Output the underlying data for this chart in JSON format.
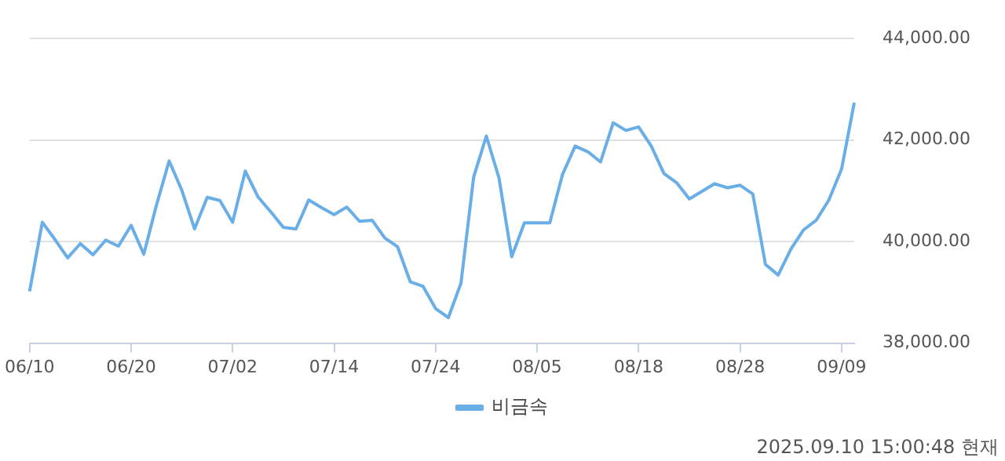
{
  "chart_data": {
    "type": "line",
    "categories": [
      "06/10",
      null,
      null,
      null,
      null,
      null,
      null,
      null,
      "06/20",
      null,
      null,
      null,
      null,
      null,
      null,
      null,
      "07/02",
      null,
      null,
      null,
      null,
      null,
      null,
      null,
      "07/14",
      null,
      null,
      null,
      null,
      null,
      null,
      null,
      "07/24",
      null,
      null,
      null,
      null,
      null,
      null,
      null,
      "08/05",
      null,
      null,
      null,
      null,
      null,
      null,
      null,
      "08/18",
      null,
      null,
      null,
      null,
      null,
      null,
      null,
      "08/28",
      null,
      null,
      null,
      null,
      null,
      null,
      null,
      "09/09",
      null
    ],
    "series": [
      {
        "name": "비금속",
        "color": "#6aaee8",
        "values": [
          39020,
          40380,
          40040,
          39680,
          39960,
          39740,
          40030,
          39910,
          40320,
          39750,
          40720,
          41590,
          41010,
          40250,
          40870,
          40810,
          40380,
          41390,
          40880,
          40590,
          40280,
          40250,
          40820,
          40670,
          40530,
          40680,
          40400,
          40420,
          40070,
          39900,
          39210,
          39120,
          38680,
          38500,
          39180,
          41270,
          42080,
          41250,
          39700,
          40370,
          40370,
          40370,
          41320,
          41880,
          41770,
          41570,
          42340,
          42190,
          42260,
          41880,
          41340,
          41160,
          40840,
          40990,
          41140,
          41060,
          41110,
          40940,
          39550,
          39340,
          39850,
          40230,
          40420,
          40820,
          41430,
          42740
        ]
      }
    ],
    "ylim": [
      38000,
      44000
    ],
    "yticks": [
      {
        "value": 38000,
        "label": "38,000.00"
      },
      {
        "value": 40000,
        "label": "40,000.00"
      },
      {
        "value": 42000,
        "label": "42,000.00"
      },
      {
        "value": 44000,
        "label": "44,000.00"
      }
    ],
    "grid": "y",
    "legend": "bottom",
    "marker": "none",
    "line_style": "solid",
    "annotations": [
      "2025.09.10 15:00:48 현재"
    ]
  }
}
